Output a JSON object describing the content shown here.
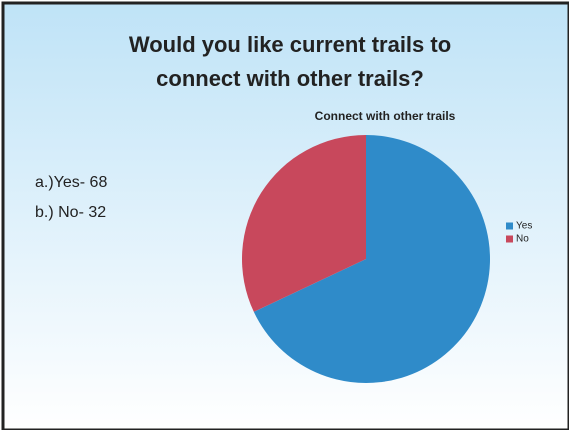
{
  "slide": {
    "title": "Would you like current trails to connect with other trails?",
    "bullets": [
      "a.)Yes- 68",
      "b.) No- 32"
    ]
  },
  "chart_data": {
    "type": "pie",
    "title": "Connect with other trails",
    "categories": [
      "Yes",
      "No"
    ],
    "values": [
      68,
      32
    ],
    "colors": [
      "#2f8bc9",
      "#c8485c"
    ],
    "legend": "right"
  }
}
